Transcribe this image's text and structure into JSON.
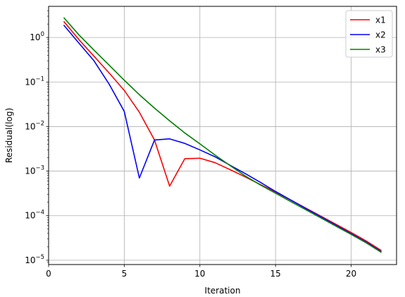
{
  "chart_data": {
    "type": "line",
    "title": "",
    "xlabel": "Iteration",
    "ylabel": "Residual(log)",
    "xlim": [
      0,
      23
    ],
    "ylim": [
      8e-06,
      5
    ],
    "yscale": "log",
    "grid": true,
    "legend": "top-right",
    "x_ticks": [
      0,
      5,
      10,
      15,
      20
    ],
    "x_tick_labels": [
      "0",
      "5",
      "10",
      "15",
      "20"
    ],
    "y_ticks": [
      1e-05,
      0.0001,
      0.001,
      0.01,
      0.1,
      1
    ],
    "y_tick_labels": [
      {
        "base": "10",
        "exp": "−5"
      },
      {
        "base": "10",
        "exp": "−4"
      },
      {
        "base": "10",
        "exp": "−3"
      },
      {
        "base": "10",
        "exp": "−2"
      },
      {
        "base": "10",
        "exp": "−1"
      },
      {
        "base": "10",
        "exp": "0"
      }
    ],
    "x": [
      1,
      2,
      3,
      4,
      5,
      6,
      7,
      8,
      9,
      10,
      11,
      12,
      13,
      14,
      15,
      16,
      17,
      18,
      19,
      20,
      21,
      22
    ],
    "series": [
      {
        "name": "x1",
        "color": "#ff0000",
        "values": [
          2.3,
          0.9,
          0.38,
          0.16,
          0.065,
          0.021,
          0.005,
          0.00046,
          0.0019,
          0.00195,
          0.00155,
          0.00108,
          0.00074,
          0.0005,
          0.00034,
          0.000225,
          0.000148,
          9.75e-05,
          6.4e-05,
          4.2e-05,
          2.7e-05,
          1.65e-05
        ]
      },
      {
        "name": "x2",
        "color": "#0000ff",
        "values": [
          1.9,
          0.75,
          0.3,
          0.09,
          0.022,
          0.0007,
          0.005,
          0.0053,
          0.0042,
          0.003,
          0.0021,
          0.00135,
          0.00088,
          0.00056,
          0.00035,
          0.000225,
          0.000145,
          9.45e-05,
          6.1e-05,
          3.95e-05,
          2.55e-05,
          1.55e-05
        ]
      },
      {
        "name": "x3",
        "color": "#008000",
        "values": [
          2.8,
          1.15,
          0.52,
          0.24,
          0.11,
          0.052,
          0.026,
          0.0135,
          0.0072,
          0.0041,
          0.0023,
          0.00133,
          0.00078,
          0.00049,
          0.00032,
          0.000208,
          0.000136,
          8.9e-05,
          5.8e-05,
          3.8e-05,
          2.45e-05,
          1.5e-05
        ]
      }
    ]
  }
}
